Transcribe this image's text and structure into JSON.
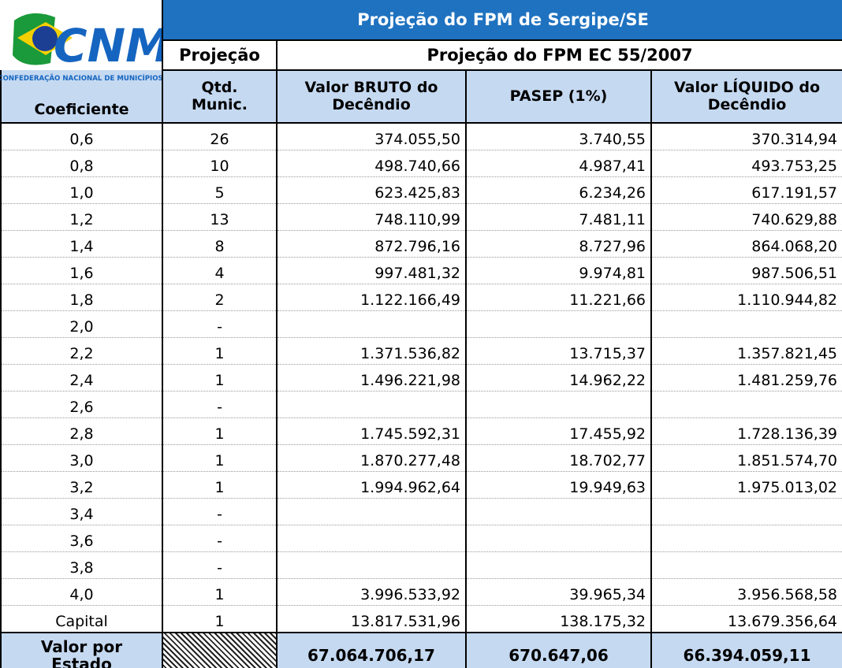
{
  "logo": {
    "brand": "CNM",
    "caption": "CONFEDERAÇÃO NACIONAL DE MUNICÍPIOS"
  },
  "header": {
    "title": "Projeção do FPM de Sergipe/SE",
    "group_left": "Projeção",
    "group_right": "Projeção do FPM EC 55/2007",
    "columns": [
      "Coeficiente",
      "Qtd. Munic.",
      "Valor BRUTO do Decêndio",
      "PASEP (1%)",
      "Valor LÍQUIDO do Decêndio"
    ]
  },
  "table": {
    "rows": [
      [
        "0,6",
        "26",
        "374.055,50",
        "3.740,55",
        "370.314,94"
      ],
      [
        "0,8",
        "10",
        "498.740,66",
        "4.987,41",
        "493.753,25"
      ],
      [
        "1,0",
        "5",
        "623.425,83",
        "6.234,26",
        "617.191,57"
      ],
      [
        "1,2",
        "13",
        "748.110,99",
        "7.481,11",
        "740.629,88"
      ],
      [
        "1,4",
        "8",
        "872.796,16",
        "8.727,96",
        "864.068,20"
      ],
      [
        "1,6",
        "4",
        "997.481,32",
        "9.974,81",
        "987.506,51"
      ],
      [
        "1,8",
        "2",
        "1.122.166,49",
        "11.221,66",
        "1.110.944,82"
      ],
      [
        "2,0",
        "-",
        null,
        null,
        null
      ],
      [
        "2,2",
        "1",
        "1.371.536,82",
        "13.715,37",
        "1.357.821,45"
      ],
      [
        "2,4",
        "1",
        "1.496.221,98",
        "14.962,22",
        "1.481.259,76"
      ],
      [
        "2,6",
        "-",
        null,
        null,
        null
      ],
      [
        "2,8",
        "1",
        "1.745.592,31",
        "17.455,92",
        "1.728.136,39"
      ],
      [
        "3,0",
        "1",
        "1.870.277,48",
        "18.702,77",
        "1.851.574,70"
      ],
      [
        "3,2",
        "1",
        "1.994.962,64",
        "19.949,63",
        "1.975.013,02"
      ],
      [
        "3,4",
        "-",
        null,
        null,
        null
      ],
      [
        "3,6",
        "-",
        null,
        null,
        null
      ],
      [
        "3,8",
        "-",
        null,
        null,
        null
      ],
      [
        "4,0",
        "1",
        "3.996.533,92",
        "39.965,34",
        "3.956.568,58"
      ],
      [
        "Capital",
        "1",
        "13.817.531,96",
        "138.175,32",
        "13.679.356,64"
      ]
    ]
  },
  "total": {
    "label": "Valor por Estado",
    "values": [
      "67.064.706,17",
      "670.647,06",
      "66.394.059,11"
    ]
  }
}
